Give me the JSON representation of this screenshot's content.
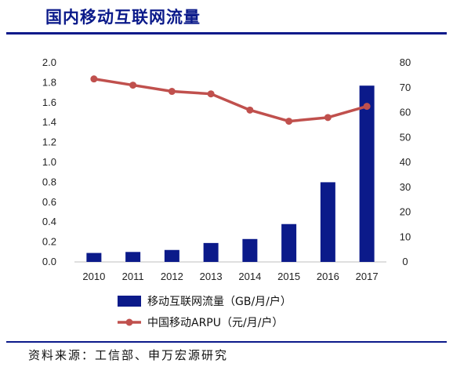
{
  "header": {
    "title": "国内移动互联网流量"
  },
  "footer": {
    "source": "资料来源：工信部、申万宏源研究"
  },
  "chart_data": {
    "type": "bar",
    "title": "国内移动互联网流量",
    "categories": [
      "2010",
      "2011",
      "2012",
      "2013",
      "2014",
      "2015",
      "2016",
      "2017"
    ],
    "y_left": {
      "min": 0,
      "max": 2.0,
      "ticks": [
        "0.0",
        "0.2",
        "0.4",
        "0.6",
        "0.8",
        "1.0",
        "1.2",
        "1.4",
        "1.6",
        "1.8",
        "2.0"
      ]
    },
    "y_right": {
      "min": 0,
      "max": 80,
      "ticks": [
        "0",
        "10",
        "20",
        "30",
        "40",
        "50",
        "60",
        "70",
        "80"
      ]
    },
    "series": [
      {
        "name": "移动互联网流量（GB/月/户）",
        "kind": "bar",
        "axis": "left",
        "color": "#0b1a8a",
        "values": [
          0.09,
          0.1,
          0.12,
          0.19,
          0.23,
          0.38,
          0.8,
          1.77
        ]
      },
      {
        "name": "中国移动ARPU（元/月/户）",
        "kind": "line",
        "axis": "right",
        "color": "#c0504d",
        "values": [
          73.5,
          71,
          68.5,
          67.5,
          61,
          56.5,
          58,
          62.5
        ]
      }
    ],
    "legend": "bottom",
    "grid": false
  }
}
